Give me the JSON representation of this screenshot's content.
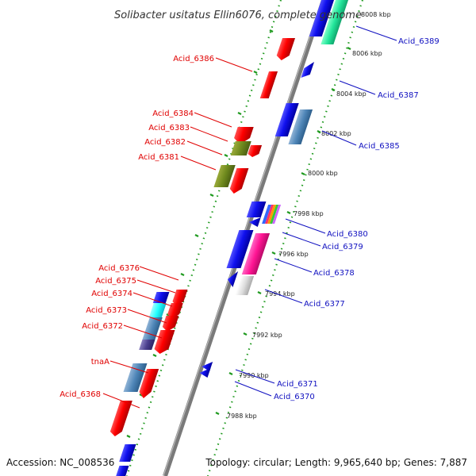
{
  "title": "Solibacter usitatus Ellin6076, complete genome",
  "footer": {
    "accession": "Accession: NC_008536",
    "summary": "Topology: circular; Length: 9,965,640 bp; Genes: 7,887"
  },
  "colors": {
    "backbone": "#7a7a7a",
    "dotted_track": "#1f9a1f",
    "forward_label": "#e00000",
    "reverse_label": "#1010c0"
  },
  "kbp_ticks": [
    "8008 kbp",
    "8006 kbp",
    "8004 kbp",
    "8002 kbp",
    "8000 kbp",
    "7998 kbp",
    "7996 kbp",
    "7994 kbp",
    "7992 kbp",
    "7990 kbp",
    "7988 kbp"
  ],
  "left_labels": [
    "Acid_6386",
    "Acid_6384",
    "Acid_6383",
    "Acid_6382",
    "Acid_6381",
    "Acid_6376",
    "Acid_6375",
    "Acid_6374",
    "Acid_6373",
    "Acid_6372",
    "tnaA",
    "Acid_6368"
  ],
  "right_labels": [
    "Acid_6389",
    "Acid_6387",
    "Acid_6385",
    "Acid_6380",
    "Acid_6379",
    "Acid_6378",
    "Acid_6377",
    "Acid_6371",
    "Acid_6370"
  ]
}
